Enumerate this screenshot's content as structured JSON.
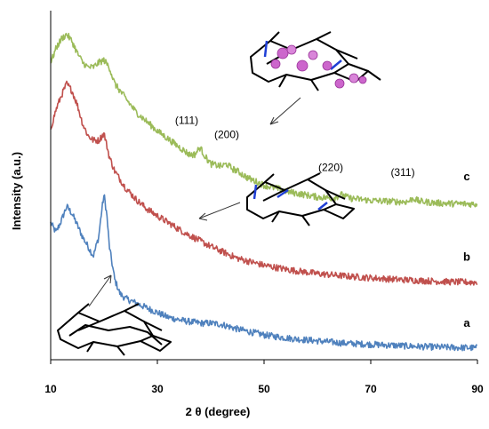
{
  "chart_data": {
    "type": "line",
    "title": "",
    "xlabel": "2 θ (degree)",
    "ylabel": "Intensity (a.u.)",
    "xlim": [
      10,
      90
    ],
    "x_ticks": [
      "10",
      "30",
      "50",
      "70",
      "90"
    ],
    "grid": false,
    "legend": "none",
    "y_ticks_shown": false,
    "series": [
      {
        "name": "a",
        "color": "#4f81bd",
        "x": [
          10,
          11,
          12,
          13,
          14,
          15,
          16,
          17,
          18,
          19,
          19.5,
          20,
          20.5,
          21,
          22,
          23,
          24,
          26,
          28,
          30,
          32,
          35,
          38,
          40,
          42,
          45,
          50,
          55,
          60,
          65,
          70,
          75,
          80,
          85,
          90
        ],
        "y": [
          0.68,
          0.64,
          0.69,
          0.75,
          0.72,
          0.67,
          0.62,
          0.58,
          0.54,
          0.62,
          0.72,
          0.8,
          0.72,
          0.58,
          0.44,
          0.38,
          0.36,
          0.34,
          0.32,
          0.3,
          0.28,
          0.265,
          0.255,
          0.255,
          0.25,
          0.23,
          0.205,
          0.19,
          0.18,
          0.17,
          0.165,
          0.16,
          0.155,
          0.152,
          0.15
        ]
      },
      {
        "name": "b",
        "color": "#c0504d",
        "x": [
          10,
          11,
          12,
          13,
          14,
          15,
          16,
          17,
          18,
          19,
          20,
          21,
          22,
          24,
          26,
          28,
          30,
          35,
          40,
          45,
          50,
          55,
          60,
          65,
          70,
          75,
          80,
          85,
          90
        ],
        "y": [
          1.08,
          1.16,
          1.22,
          1.27,
          1.24,
          1.18,
          1.1,
          1.05,
          1.03,
          1.03,
          1.06,
          0.96,
          0.9,
          0.83,
          0.78,
          0.74,
          0.71,
          0.64,
          0.58,
          0.53,
          0.5,
          0.48,
          0.465,
          0.455,
          0.447,
          0.44,
          0.435,
          0.43,
          0.428
        ]
      },
      {
        "name": "c",
        "color": "#9bbb59",
        "x": [
          10,
          11,
          12,
          13,
          14,
          15,
          16,
          17,
          18,
          19,
          20,
          21,
          22,
          24,
          26,
          28,
          30,
          33,
          36,
          37,
          38,
          39,
          40,
          42,
          43,
          44,
          45,
          47,
          50,
          55,
          60,
          63,
          64.5,
          66,
          70,
          75,
          77,
          78,
          79,
          82,
          85,
          90
        ],
        "y": [
          1.36,
          1.42,
          1.46,
          1.48,
          1.45,
          1.4,
          1.36,
          1.34,
          1.34,
          1.36,
          1.37,
          1.34,
          1.27,
          1.21,
          1.15,
          1.11,
          1.07,
          1.02,
          0.97,
          0.97,
          1.0,
          0.96,
          0.93,
          0.92,
          0.93,
          0.91,
          0.9,
          0.87,
          0.84,
          0.81,
          0.79,
          0.785,
          0.8,
          0.785,
          0.775,
          0.77,
          0.77,
          0.785,
          0.772,
          0.765,
          0.762,
          0.76
        ]
      }
    ],
    "series_labels": [
      {
        "text": "a",
        "x": 88,
        "y": 0.24
      },
      {
        "text": "b",
        "x": 88,
        "y": 0.52
      },
      {
        "text": "c",
        "x": 88,
        "y": 0.86
      }
    ],
    "annotations": [
      {
        "text": "(111)",
        "x": 35.5,
        "y": 1.1
      },
      {
        "text": "(200)",
        "x": 43,
        "y": 1.04
      },
      {
        "text": "(220)",
        "x": 62.5,
        "y": 0.9
      },
      {
        "text": "(311)",
        "x": 76,
        "y": 0.88
      }
    ]
  },
  "colors": {
    "framework": "#000000",
    "linker": "#1f3fd6",
    "nanoparticle": "#cc66cc",
    "arrow": "#333333"
  },
  "icons": [
    "framework-structure-icon",
    "framework-linked-icon",
    "framework-nanoparticle-icon",
    "nanoparticle-sphere-icon"
  ]
}
